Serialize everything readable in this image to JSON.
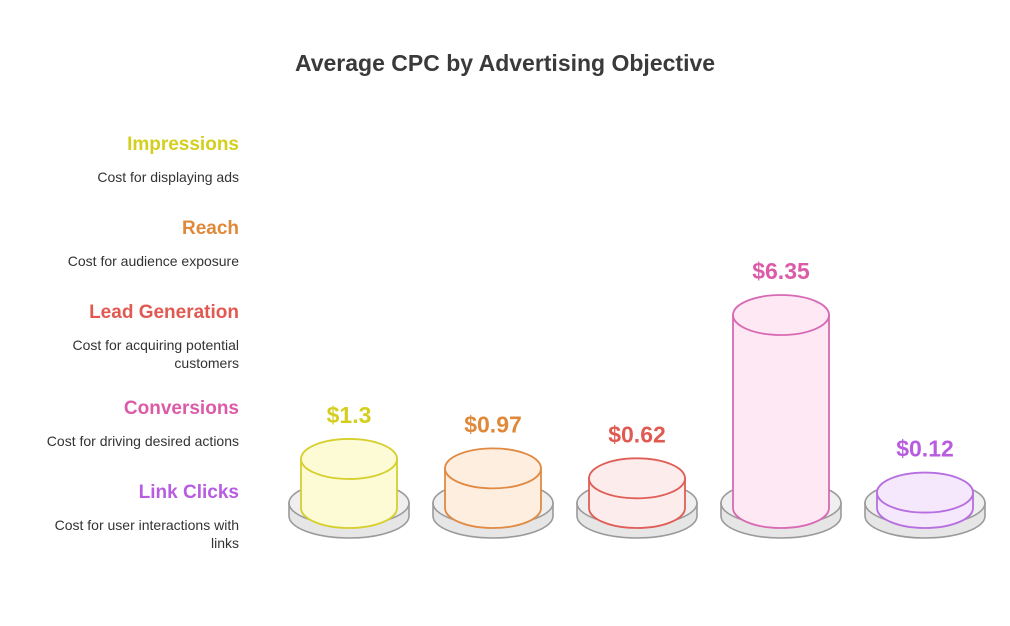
{
  "chart_data": {
    "type": "bar",
    "title": "Average CPC by Advertising Objective",
    "categories": [
      "Impressions",
      "Reach",
      "Lead Generation",
      "Conversions",
      "Link Clicks"
    ],
    "values": [
      1.3,
      0.97,
      0.62,
      6.35,
      0.12
    ],
    "value_labels": [
      "$1.3",
      "$0.97",
      "$0.62",
      "$6.35",
      "$0.12"
    ],
    "descriptions": [
      "Cost for displaying ads",
      "Cost for audience exposure",
      "Cost for acquiring potential customers",
      "Cost for driving desired actions",
      "Cost for user interactions with links"
    ],
    "colors": [
      "#d4cf1e",
      "#e0893a",
      "#e05a52",
      "#dc5aa8",
      "#b85de0"
    ],
    "fills": [
      "#fdfbd6",
      "#fdeee0",
      "#fdecec",
      "#fde8f4",
      "#f5e8fd"
    ],
    "strokes": [
      "#d6cf2e",
      "#e08a43",
      "#e05e57",
      "#d86ab4",
      "#b66ee0"
    ],
    "legend": "left"
  }
}
